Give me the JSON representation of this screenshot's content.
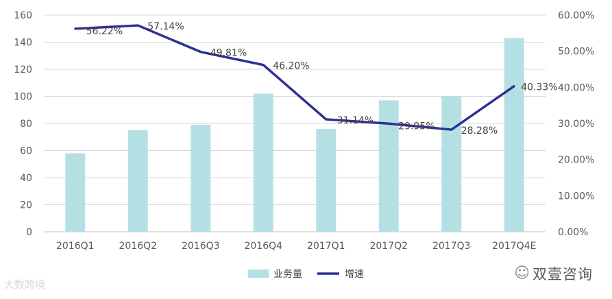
{
  "chart_data": {
    "type": "bar",
    "categories": [
      "2016Q1",
      "2016Q2",
      "2016Q3",
      "2016Q4",
      "2017Q1",
      "2017Q2",
      "2017Q3",
      "2017Q4E"
    ],
    "series": [
      {
        "name": "业务量",
        "type": "bar",
        "axis": "left",
        "color": "#b4e0e4",
        "values": [
          58,
          75,
          79,
          102,
          76,
          97,
          100,
          143
        ]
      },
      {
        "name": "增速",
        "type": "line",
        "axis": "right",
        "color": "#2e3192",
        "values": [
          56.22,
          57.14,
          49.81,
          46.2,
          31.14,
          29.95,
          28.28,
          40.33
        ],
        "labels": [
          "56.22%",
          "57.14%",
          "49.81%",
          "46.20%",
          "31.14%",
          "29.95%",
          "28.28%",
          "40.33%"
        ]
      }
    ],
    "y_left": {
      "min": 0,
      "max": 160,
      "ticks": [
        "0",
        "20",
        "40",
        "60",
        "80",
        "100",
        "120",
        "140",
        "160"
      ]
    },
    "y_right": {
      "min": 0,
      "max": 60,
      "ticks": [
        "0.00%",
        "10.00%",
        "20.00%",
        "30.00%",
        "40.00%",
        "50.00%",
        "60.00%"
      ]
    },
    "grid": true,
    "legend": "bottom"
  },
  "watermarks": {
    "left": "大数跨境",
    "right": "双壹咨询"
  }
}
